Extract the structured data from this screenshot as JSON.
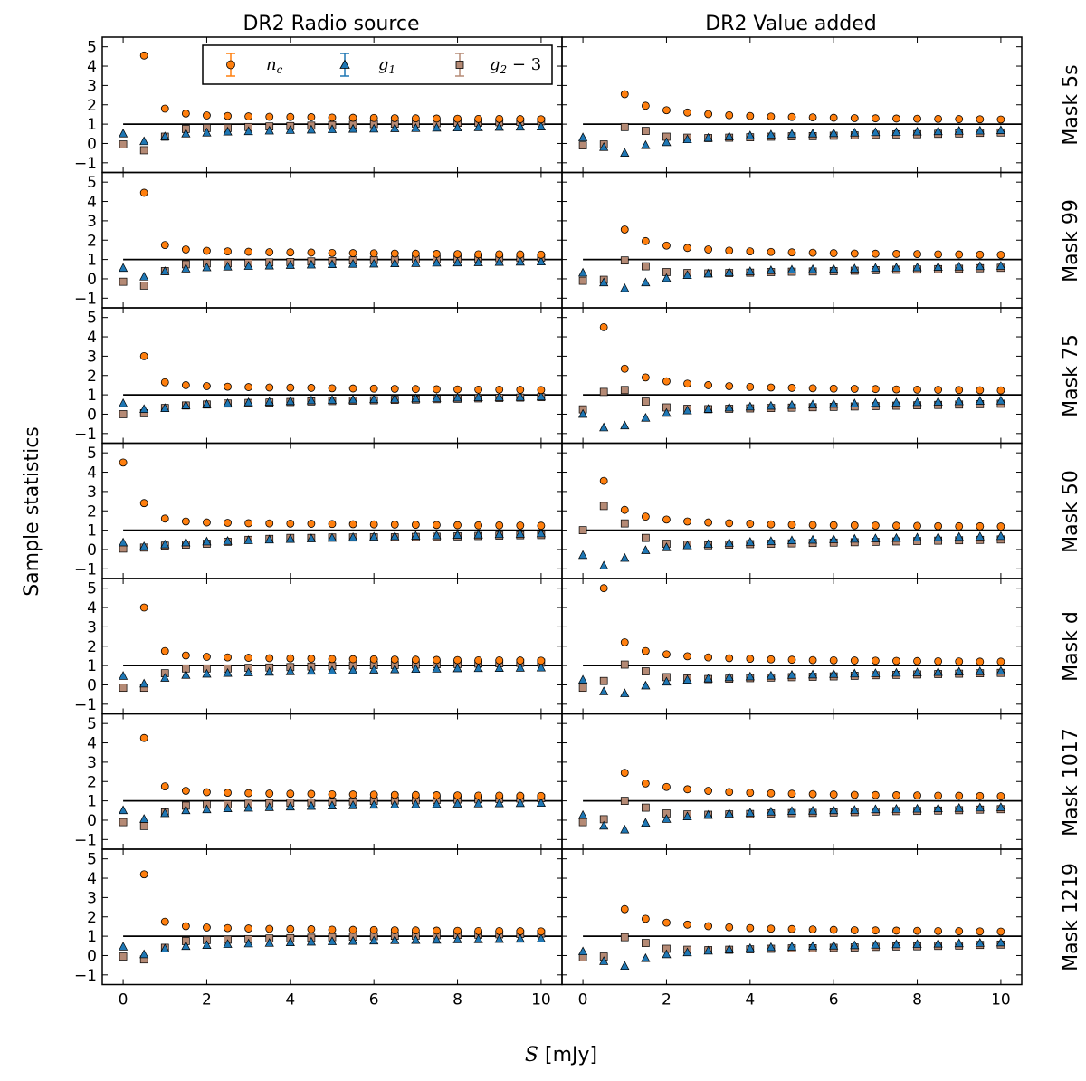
{
  "figure": {
    "column_titles": [
      "DR2 Radio source",
      "DR2 Value added"
    ],
    "row_labels": [
      "Mask 5s",
      "Mask 99",
      "Mask 75",
      "Mask 50",
      "Mask d",
      "Mask 1017",
      "Mask 1219"
    ],
    "ylabel": "Sample statistics",
    "xlabel_symbol": "S",
    "xlabel_unit": "[mJy]"
  },
  "legend": {
    "placement": "top, inside first panel",
    "entries": [
      {
        "key": "nc",
        "label_main": "n",
        "label_sub": "c",
        "label_tail": "",
        "marker": "circle",
        "color": "#ff7f0e"
      },
      {
        "key": "g1",
        "label_main": "g",
        "label_sub": "1",
        "label_tail": "",
        "marker": "triangle",
        "color": "#1f77b4"
      },
      {
        "key": "g2",
        "label_main": "g",
        "label_sub": "2",
        "label_tail": " − 3",
        "marker": "square",
        "color": "#b58a75"
      }
    ]
  },
  "chart_data": {
    "type": "scatter",
    "x": [
      0,
      0.5,
      1,
      1.5,
      2,
      2.5,
      3,
      3.5,
      4,
      4.5,
      5,
      5.5,
      6,
      6.5,
      7,
      7.5,
      8,
      8.5,
      9,
      9.5,
      10
    ],
    "xlim": [
      -0.5,
      10.5
    ],
    "ylim": [
      -1.5,
      5.5
    ],
    "xticks": [
      0,
      2,
      4,
      6,
      8,
      10
    ],
    "yticks": [
      -1,
      0,
      1,
      2,
      3,
      4,
      5
    ],
    "reference_line_y": 1,
    "grid": false,
    "panels": [
      {
        "row": "Mask 5s",
        "column": "DR2 Radio source",
        "nc": [
          null,
          4.55,
          1.8,
          1.55,
          1.45,
          1.42,
          1.4,
          1.38,
          1.37,
          1.36,
          1.34,
          1.33,
          1.32,
          1.31,
          1.3,
          1.29,
          1.28,
          1.27,
          1.27,
          1.26,
          1.25
        ],
        "g1": [
          0.5,
          0.1,
          0.35,
          0.5,
          0.55,
          0.6,
          0.62,
          0.65,
          0.68,
          0.7,
          0.72,
          0.74,
          0.75,
          0.77,
          0.78,
          0.8,
          0.81,
          0.82,
          0.84,
          0.85,
          0.86
        ],
        "g2": [
          -0.05,
          -0.35,
          0.35,
          0.75,
          0.8,
          0.8,
          0.85,
          0.88,
          0.9,
          0.92,
          0.95,
          0.97,
          1.0,
          1.02,
          1.03,
          1.05,
          1.07,
          1.08,
          1.1,
          1.12,
          1.15
        ]
      },
      {
        "row": "Mask 5s",
        "column": "DR2 Value added",
        "nc": [
          null,
          null,
          2.55,
          1.95,
          1.72,
          1.6,
          1.52,
          1.46,
          1.42,
          1.39,
          1.37,
          1.35,
          1.33,
          1.31,
          1.3,
          1.29,
          1.28,
          1.27,
          1.26,
          1.25,
          1.24
        ],
        "g1": [
          0.3,
          -0.2,
          -0.5,
          -0.1,
          0.05,
          0.2,
          0.28,
          0.35,
          0.4,
          0.45,
          0.48,
          0.5,
          0.52,
          0.55,
          0.57,
          0.58,
          0.6,
          0.62,
          0.64,
          0.65,
          0.67
        ],
        "g2": [
          -0.1,
          -0.05,
          0.85,
          0.65,
          0.35,
          0.3,
          0.28,
          0.3,
          0.32,
          0.35,
          0.37,
          0.38,
          0.4,
          0.42,
          0.45,
          0.47,
          0.48,
          0.5,
          0.52,
          0.55,
          0.57
        ]
      },
      {
        "row": "Mask 99",
        "column": "DR2 Radio source",
        "nc": [
          null,
          4.45,
          1.75,
          1.52,
          1.45,
          1.42,
          1.4,
          1.38,
          1.37,
          1.36,
          1.34,
          1.33,
          1.32,
          1.31,
          1.3,
          1.29,
          1.28,
          1.27,
          1.27,
          1.26,
          1.25
        ],
        "g1": [
          0.55,
          0.1,
          0.38,
          0.52,
          0.58,
          0.62,
          0.65,
          0.67,
          0.7,
          0.72,
          0.74,
          0.76,
          0.77,
          0.79,
          0.8,
          0.82,
          0.83,
          0.84,
          0.86,
          0.87,
          0.88
        ],
        "g2": [
          -0.15,
          -0.35,
          0.4,
          0.75,
          0.8,
          0.8,
          0.82,
          0.85,
          0.87,
          0.9,
          0.92,
          0.95,
          0.97,
          0.98,
          1.0,
          1.02,
          1.03,
          1.05,
          1.07,
          1.08,
          1.1
        ]
      },
      {
        "row": "Mask 99",
        "column": "DR2 Value added",
        "nc": [
          null,
          null,
          2.55,
          1.95,
          1.72,
          1.6,
          1.52,
          1.46,
          1.42,
          1.39,
          1.37,
          1.35,
          1.33,
          1.31,
          1.3,
          1.29,
          1.28,
          1.27,
          1.26,
          1.25,
          1.24
        ],
        "g1": [
          0.3,
          -0.2,
          -0.5,
          -0.2,
          0.02,
          0.18,
          0.26,
          0.33,
          0.38,
          0.43,
          0.46,
          0.48,
          0.5,
          0.52,
          0.55,
          0.57,
          0.58,
          0.6,
          0.62,
          0.64,
          0.66
        ],
        "g2": [
          -0.1,
          -0.05,
          0.95,
          0.65,
          0.35,
          0.3,
          0.28,
          0.3,
          0.32,
          0.35,
          0.37,
          0.38,
          0.4,
          0.42,
          0.45,
          0.47,
          0.48,
          0.5,
          0.52,
          0.55,
          0.57
        ]
      },
      {
        "row": "Mask 75",
        "column": "DR2 Radio source",
        "nc": [
          null,
          3.0,
          1.65,
          1.5,
          1.45,
          1.42,
          1.4,
          1.38,
          1.37,
          1.36,
          1.34,
          1.33,
          1.32,
          1.31,
          1.3,
          1.29,
          1.28,
          1.27,
          1.27,
          1.26,
          1.25
        ],
        "g1": [
          0.55,
          0.25,
          0.3,
          0.45,
          0.5,
          0.55,
          0.6,
          0.63,
          0.66,
          0.7,
          0.72,
          0.74,
          0.76,
          0.78,
          0.8,
          0.82,
          0.84,
          0.86,
          0.87,
          0.88,
          0.9
        ],
        "g2": [
          0.0,
          0.05,
          0.32,
          0.45,
          0.5,
          0.55,
          0.58,
          0.6,
          0.63,
          0.66,
          0.68,
          0.7,
          0.72,
          0.74,
          0.76,
          0.78,
          0.8,
          0.82,
          0.84,
          0.86,
          0.88
        ]
      },
      {
        "row": "Mask 75",
        "column": "DR2 Value added",
        "nc": [
          null,
          4.5,
          2.35,
          1.9,
          1.7,
          1.58,
          1.5,
          1.45,
          1.41,
          1.38,
          1.36,
          1.34,
          1.32,
          1.31,
          1.3,
          1.28,
          1.27,
          1.26,
          1.25,
          1.24,
          1.23
        ],
        "g1": [
          0.0,
          -0.7,
          -0.6,
          -0.2,
          0.05,
          0.18,
          0.26,
          0.33,
          0.38,
          0.42,
          0.46,
          0.49,
          0.52,
          0.54,
          0.57,
          0.59,
          0.61,
          0.63,
          0.65,
          0.67,
          0.69
        ],
        "g2": [
          0.25,
          1.15,
          1.25,
          0.65,
          0.35,
          0.28,
          0.26,
          0.28,
          0.3,
          0.32,
          0.34,
          0.36,
          0.38,
          0.4,
          0.42,
          0.44,
          0.46,
          0.48,
          0.5,
          0.52,
          0.54
        ]
      },
      {
        "row": "Mask 50",
        "column": "DR2 Radio source",
        "nc": [
          4.5,
          2.4,
          1.6,
          1.45,
          1.4,
          1.38,
          1.36,
          1.35,
          1.34,
          1.33,
          1.32,
          1.31,
          1.3,
          1.29,
          1.28,
          1.27,
          1.26,
          1.25,
          1.25,
          1.24,
          1.23
        ],
        "g1": [
          0.35,
          0.15,
          0.25,
          0.35,
          0.4,
          0.43,
          0.47,
          0.5,
          0.53,
          0.56,
          0.59,
          0.62,
          0.65,
          0.67,
          0.7,
          0.72,
          0.74,
          0.76,
          0.78,
          0.8,
          0.82
        ],
        "g2": [
          0.05,
          0.1,
          0.2,
          0.25,
          0.3,
          0.4,
          0.5,
          0.55,
          0.6,
          0.6,
          0.62,
          0.62,
          0.63,
          0.63,
          0.65,
          0.66,
          0.68,
          0.7,
          0.72,
          0.74,
          0.75
        ]
      },
      {
        "row": "Mask 50",
        "column": "DR2 Value added",
        "nc": [
          null,
          3.55,
          2.05,
          1.7,
          1.55,
          1.45,
          1.4,
          1.36,
          1.33,
          1.3,
          1.28,
          1.27,
          1.26,
          1.25,
          1.24,
          1.23,
          1.22,
          1.21,
          1.2,
          1.2,
          1.19
        ],
        "g1": [
          -0.3,
          -0.85,
          -0.45,
          -0.05,
          0.1,
          0.2,
          0.27,
          0.33,
          0.38,
          0.42,
          0.46,
          0.49,
          0.52,
          0.54,
          0.56,
          0.58,
          0.6,
          0.62,
          0.64,
          0.66,
          0.68
        ],
        "g2": [
          1.0,
          2.25,
          1.35,
          0.6,
          0.3,
          0.25,
          0.22,
          0.25,
          0.28,
          0.3,
          0.32,
          0.34,
          0.36,
          0.38,
          0.4,
          0.42,
          0.44,
          0.46,
          0.48,
          0.5,
          0.52
        ]
      },
      {
        "row": "Mask d",
        "column": "DR2 Radio source",
        "nc": [
          null,
          4.0,
          1.75,
          1.52,
          1.45,
          1.42,
          1.4,
          1.38,
          1.37,
          1.36,
          1.34,
          1.33,
          1.32,
          1.31,
          1.3,
          1.29,
          1.28,
          1.27,
          1.27,
          1.26,
          1.25
        ],
        "g1": [
          0.45,
          0.05,
          0.35,
          0.5,
          0.56,
          0.6,
          0.63,
          0.66,
          0.69,
          0.71,
          0.73,
          0.75,
          0.77,
          0.79,
          0.81,
          0.82,
          0.84,
          0.85,
          0.86,
          0.87,
          0.88
        ],
        "g2": [
          -0.15,
          -0.15,
          0.6,
          0.85,
          0.85,
          0.85,
          0.88,
          0.9,
          0.92,
          0.95,
          0.97,
          1.0,
          1.02,
          1.03,
          1.05,
          1.07,
          1.08,
          1.1,
          1.12,
          1.14,
          1.15
        ]
      },
      {
        "row": "Mask d",
        "column": "DR2 Value added",
        "nc": [
          null,
          5.0,
          2.2,
          1.75,
          1.58,
          1.48,
          1.42,
          1.38,
          1.35,
          1.32,
          1.3,
          1.28,
          1.27,
          1.26,
          1.25,
          1.24,
          1.23,
          1.22,
          1.21,
          1.2,
          1.2
        ],
        "g1": [
          0.25,
          -0.35,
          -0.45,
          -0.05,
          0.15,
          0.25,
          0.32,
          0.38,
          0.42,
          0.46,
          0.5,
          0.52,
          0.55,
          0.57,
          0.59,
          0.61,
          0.63,
          0.65,
          0.67,
          0.69,
          0.71
        ],
        "g2": [
          -0.15,
          0.2,
          1.05,
          0.7,
          0.4,
          0.33,
          0.3,
          0.32,
          0.35,
          0.38,
          0.4,
          0.42,
          0.44,
          0.47,
          0.5,
          0.52,
          0.54,
          0.56,
          0.58,
          0.6,
          0.62
        ]
      },
      {
        "row": "Mask 1017",
        "column": "DR2 Radio source",
        "nc": [
          null,
          4.25,
          1.75,
          1.52,
          1.45,
          1.42,
          1.4,
          1.38,
          1.37,
          1.36,
          1.34,
          1.33,
          1.32,
          1.31,
          1.3,
          1.29,
          1.28,
          1.27,
          1.27,
          1.26,
          1.25
        ],
        "g1": [
          0.5,
          0.05,
          0.35,
          0.5,
          0.55,
          0.6,
          0.63,
          0.66,
          0.69,
          0.72,
          0.74,
          0.76,
          0.78,
          0.8,
          0.81,
          0.82,
          0.84,
          0.85,
          0.86,
          0.87,
          0.88
        ],
        "g2": [
          -0.1,
          -0.3,
          0.4,
          0.75,
          0.8,
          0.82,
          0.85,
          0.88,
          0.9,
          0.92,
          0.95,
          0.97,
          1.0,
          1.02,
          1.03,
          1.05,
          1.07,
          1.08,
          1.1,
          1.12,
          1.14
        ]
      },
      {
        "row": "Mask 1017",
        "column": "DR2 Value added",
        "nc": [
          null,
          null,
          2.45,
          1.9,
          1.72,
          1.6,
          1.52,
          1.46,
          1.42,
          1.39,
          1.37,
          1.35,
          1.33,
          1.31,
          1.3,
          1.29,
          1.28,
          1.27,
          1.26,
          1.25,
          1.24
        ],
        "g1": [
          0.25,
          -0.3,
          -0.5,
          -0.15,
          0.05,
          0.18,
          0.26,
          0.33,
          0.38,
          0.43,
          0.46,
          0.48,
          0.5,
          0.52,
          0.55,
          0.57,
          0.58,
          0.6,
          0.62,
          0.64,
          0.66
        ],
        "g2": [
          -0.1,
          0.05,
          1.0,
          0.65,
          0.35,
          0.3,
          0.28,
          0.3,
          0.32,
          0.35,
          0.37,
          0.38,
          0.4,
          0.42,
          0.45,
          0.47,
          0.48,
          0.5,
          0.52,
          0.55,
          0.57
        ]
      },
      {
        "row": "Mask 1219",
        "column": "DR2 Radio source",
        "nc": [
          null,
          4.2,
          1.75,
          1.52,
          1.45,
          1.42,
          1.4,
          1.38,
          1.37,
          1.36,
          1.34,
          1.33,
          1.32,
          1.31,
          1.3,
          1.29,
          1.28,
          1.27,
          1.27,
          1.26,
          1.25
        ],
        "g1": [
          0.45,
          0.05,
          0.35,
          0.48,
          0.53,
          0.58,
          0.61,
          0.64,
          0.67,
          0.7,
          0.72,
          0.74,
          0.76,
          0.78,
          0.79,
          0.8,
          0.82,
          0.83,
          0.84,
          0.85,
          0.86
        ],
        "g2": [
          -0.05,
          -0.2,
          0.4,
          0.75,
          0.8,
          0.82,
          0.85,
          0.88,
          0.9,
          0.92,
          0.95,
          0.97,
          1.0,
          1.02,
          1.03,
          1.05,
          1.07,
          1.08,
          1.1,
          1.12,
          1.14
        ]
      },
      {
        "row": "Mask 1219",
        "column": "DR2 Value added",
        "nc": [
          null,
          null,
          2.4,
          1.9,
          1.7,
          1.6,
          1.52,
          1.46,
          1.42,
          1.39,
          1.37,
          1.35,
          1.33,
          1.31,
          1.3,
          1.29,
          1.28,
          1.27,
          1.26,
          1.25,
          1.24
        ],
        "g1": [
          0.2,
          -0.3,
          -0.55,
          -0.15,
          0.05,
          0.15,
          0.24,
          0.31,
          0.37,
          0.42,
          0.45,
          0.48,
          0.5,
          0.52,
          0.55,
          0.57,
          0.58,
          0.6,
          0.62,
          0.64,
          0.66
        ],
        "g2": [
          -0.1,
          -0.05,
          0.95,
          0.65,
          0.35,
          0.3,
          0.28,
          0.3,
          0.32,
          0.35,
          0.37,
          0.38,
          0.4,
          0.42,
          0.45,
          0.47,
          0.48,
          0.5,
          0.52,
          0.55,
          0.57
        ]
      }
    ]
  }
}
